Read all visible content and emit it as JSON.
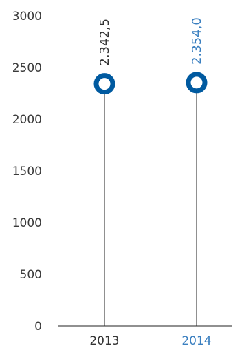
{
  "chart_data": {
    "type": "lollipop",
    "categories": [
      "2013",
      "2014"
    ],
    "values": [
      2342.5,
      2354.0
    ],
    "value_labels": [
      "2.342,5",
      "2.354,0"
    ],
    "ylim": [
      0,
      3000
    ],
    "yticks": [
      "0",
      "500",
      "1000",
      "1500",
      "2000",
      "2500",
      "3000"
    ],
    "ytick_values": [
      0,
      500,
      1000,
      1500,
      2000,
      2500,
      3000
    ],
    "grid": false,
    "colors": {
      "marker": "#005aa0",
      "stem": "#222222",
      "axis": "#222222",
      "text_default": "#333333",
      "text_highlight": "#3a7fc0"
    },
    "highlight_index": 1
  }
}
